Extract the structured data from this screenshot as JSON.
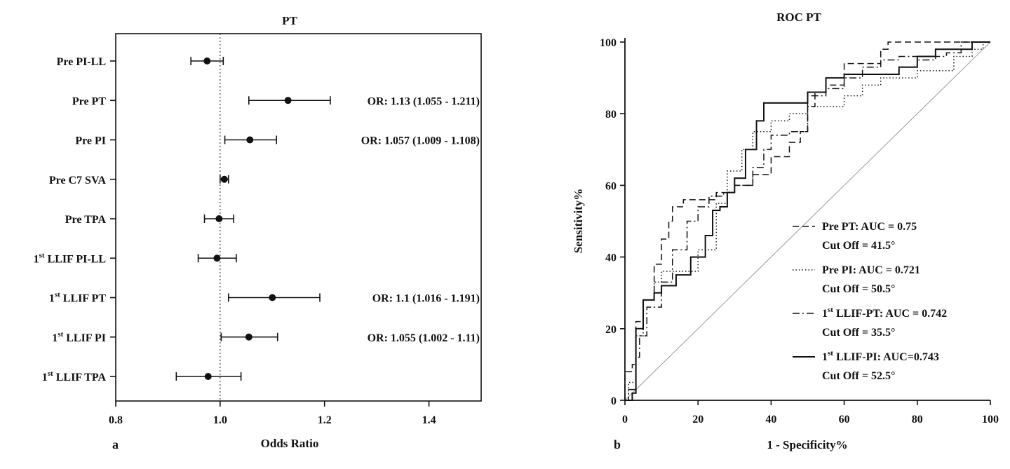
{
  "chart_data": [
    {
      "type": "forest",
      "panel_label": "a",
      "title": "PT",
      "xlabel": "Odds Ratio",
      "xlim": [
        0.8,
        1.5
      ],
      "xticks": [
        "0.8",
        "1.0",
        "1.2",
        "1.4"
      ],
      "reference_line": 1.0,
      "rows": [
        {
          "label": "Pre PI-LL",
          "sup": "",
          "label_rest": "",
          "or": 0.975,
          "lo": 0.944,
          "hi": 1.006,
          "annotation": ""
        },
        {
          "label": "Pre PT",
          "sup": "",
          "label_rest": "",
          "or": 1.13,
          "lo": 1.055,
          "hi": 1.211,
          "annotation": "OR: 1.13 (1.055 - 1.211)"
        },
        {
          "label": "Pre PI",
          "sup": "",
          "label_rest": "",
          "or": 1.057,
          "lo": 1.009,
          "hi": 1.108,
          "annotation": "OR: 1.057 (1.009 - 1.108)"
        },
        {
          "label": "Pre C7 SVA",
          "sup": "",
          "label_rest": "",
          "or": 1.008,
          "lo": 1.0,
          "hi": 1.016,
          "annotation": ""
        },
        {
          "label": "Pre TPA",
          "sup": "",
          "label_rest": "",
          "or": 0.998,
          "lo": 0.97,
          "hi": 1.026,
          "annotation": ""
        },
        {
          "label": "1",
          "sup": "st",
          "label_rest": " LLIF PI-LL",
          "or": 0.994,
          "lo": 0.958,
          "hi": 1.031,
          "annotation": ""
        },
        {
          "label": "1",
          "sup": "st",
          "label_rest": " LLIF PT",
          "or": 1.1,
          "lo": 1.016,
          "hi": 1.191,
          "annotation": "OR: 1.1 (1.016 - 1.191)"
        },
        {
          "label": "1",
          "sup": "st",
          "label_rest": " LLIF PI",
          "or": 1.055,
          "lo": 1.002,
          "hi": 1.11,
          "annotation": "OR: 1.055 (1.002 - 1.11)"
        },
        {
          "label": "1",
          "sup": "st",
          "label_rest": " LLIF TPA",
          "or": 0.977,
          "lo": 0.916,
          "hi": 1.04,
          "annotation": ""
        }
      ]
    },
    {
      "type": "line",
      "panel_label": "b",
      "title": "ROC PT",
      "xlabel": "1 - Specificity%",
      "ylabel": "Sensitivity%",
      "xlim": [
        0,
        100
      ],
      "ylim": [
        0,
        100
      ],
      "xticks": [
        "0",
        "20",
        "40",
        "60",
        "80",
        "100"
      ],
      "yticks": [
        "0",
        "20",
        "40",
        "60",
        "80",
        "100"
      ],
      "legend_position": "bottom-right",
      "reference_diagonal": true,
      "series": [
        {
          "name": "Pre PT: AUC = 0.75",
          "name_sup": "",
          "name_rest": "",
          "cutoff": "Cut Off = 41.5°",
          "style": "dashed",
          "points": [
            [
              0,
              0
            ],
            [
              0,
              8
            ],
            [
              2,
              10
            ],
            [
              3,
              22
            ],
            [
              5,
              28
            ],
            [
              8,
              38
            ],
            [
              10,
              45
            ],
            [
              12,
              50
            ],
            [
              13,
              54
            ],
            [
              16,
              56
            ],
            [
              20,
              56
            ],
            [
              25,
              58
            ],
            [
              30,
              60
            ],
            [
              35,
              63
            ],
            [
              40,
              68
            ],
            [
              45,
              72
            ],
            [
              48,
              75
            ],
            [
              50,
              82
            ],
            [
              52,
              86
            ],
            [
              55,
              88
            ],
            [
              60,
              94
            ],
            [
              65,
              94
            ],
            [
              70,
              98
            ],
            [
              72,
              100
            ],
            [
              100,
              100
            ]
          ]
        },
        {
          "name": "Pre PI: AUC = 0.721",
          "name_sup": "",
          "name_rest": "",
          "cutoff": "Cut Off = 50.5°",
          "style": "dotted",
          "points": [
            [
              0,
              0
            ],
            [
              1,
              5
            ],
            [
              3,
              18
            ],
            [
              5,
              28
            ],
            [
              8,
              33
            ],
            [
              10,
              36
            ],
            [
              15,
              36
            ],
            [
              20,
              42
            ],
            [
              25,
              55
            ],
            [
              28,
              64
            ],
            [
              32,
              70
            ],
            [
              35,
              75
            ],
            [
              40,
              78
            ],
            [
              45,
              80
            ],
            [
              50,
              82
            ],
            [
              55,
              82
            ],
            [
              60,
              85
            ],
            [
              65,
              88
            ],
            [
              70,
              90
            ],
            [
              80,
              92
            ],
            [
              90,
              96
            ],
            [
              95,
              98
            ],
            [
              98,
              100
            ],
            [
              100,
              100
            ]
          ]
        },
        {
          "name": "1",
          "name_sup": "st",
          "name_rest": " LLIF-PT: AUC = 0.742",
          "cutoff": "Cut Off = 35.5°",
          "style": "dashdot",
          "points": [
            [
              0,
              0
            ],
            [
              1,
              3
            ],
            [
              3,
              12
            ],
            [
              4,
              18
            ],
            [
              6,
              26
            ],
            [
              10,
              33
            ],
            [
              13,
              42
            ],
            [
              17,
              50
            ],
            [
              20,
              54
            ],
            [
              23,
              57
            ],
            [
              27,
              58
            ],
            [
              30,
              60
            ],
            [
              35,
              65
            ],
            [
              38,
              70
            ],
            [
              40,
              74
            ],
            [
              45,
              75
            ],
            [
              50,
              85
            ],
            [
              55,
              87
            ],
            [
              60,
              90
            ],
            [
              65,
              93
            ],
            [
              70,
              95
            ],
            [
              75,
              96
            ],
            [
              80,
              95
            ],
            [
              85,
              96
            ],
            [
              88,
              97
            ],
            [
              92,
              100
            ],
            [
              100,
              100
            ]
          ]
        },
        {
          "name": "1",
          "name_sup": "st",
          "name_rest": " LLIF-PI: AUC=0.743",
          "cutoff": "Cut Off = 52.5°",
          "style": "solid",
          "points": [
            [
              0,
              0
            ],
            [
              2,
              2
            ],
            [
              3,
              20
            ],
            [
              5,
              28
            ],
            [
              8,
              30
            ],
            [
              10,
              32
            ],
            [
              14,
              35
            ],
            [
              18,
              40
            ],
            [
              22,
              46
            ],
            [
              24,
              53
            ],
            [
              26,
              54
            ],
            [
              28,
              58
            ],
            [
              30,
              62
            ],
            [
              33,
              70
            ],
            [
              36,
              78
            ],
            [
              38,
              83
            ],
            [
              45,
              83
            ],
            [
              50,
              86
            ],
            [
              55,
              90
            ],
            [
              60,
              91
            ],
            [
              70,
              91
            ],
            [
              75,
              93
            ],
            [
              80,
              96
            ],
            [
              85,
              98
            ],
            [
              90,
              98
            ],
            [
              95,
              100
            ],
            [
              100,
              100
            ]
          ]
        }
      ]
    }
  ]
}
